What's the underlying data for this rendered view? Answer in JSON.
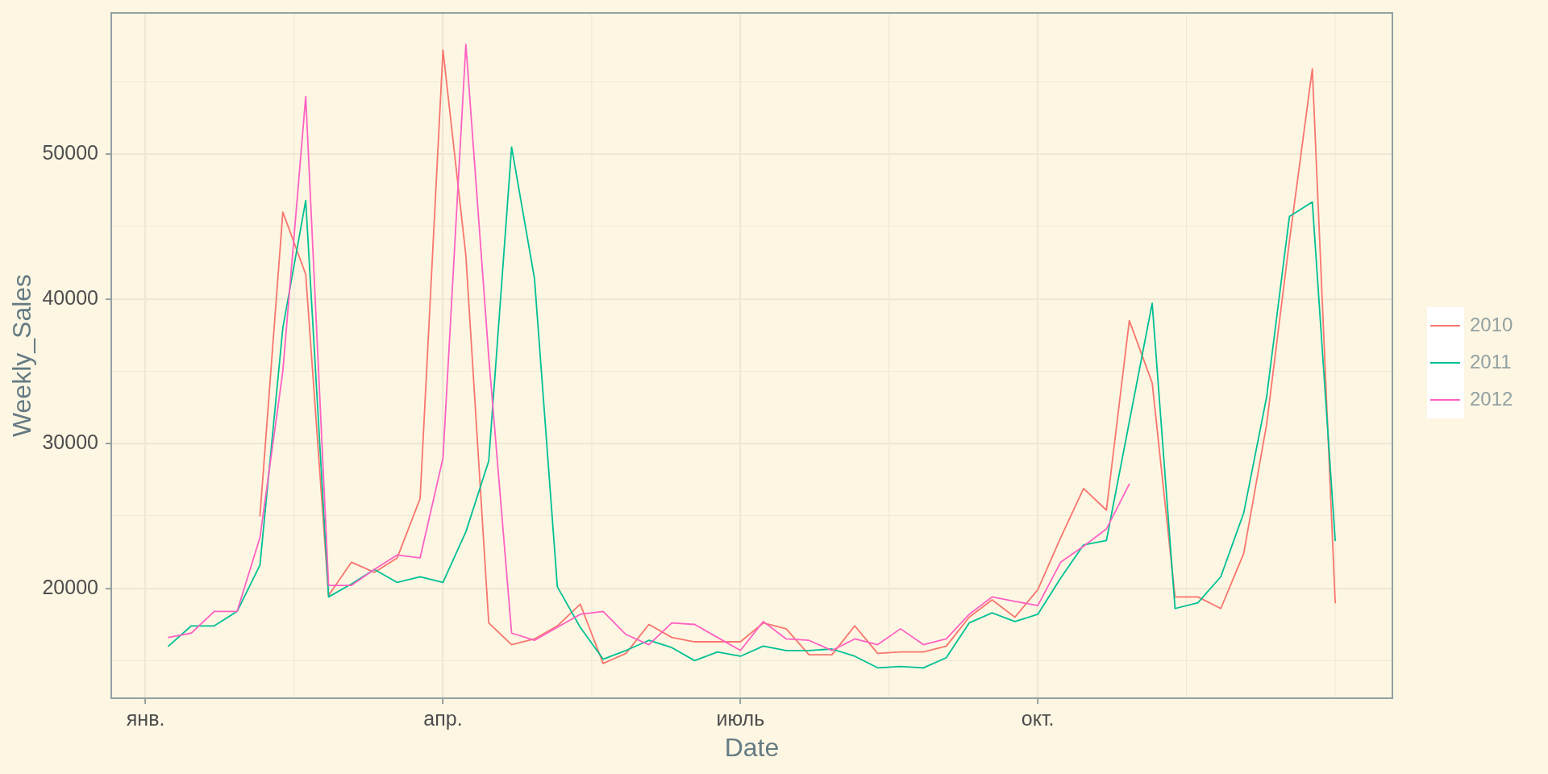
{
  "chart_data": {
    "type": "line",
    "xlabel": "Date",
    "ylabel": "Weekly_Sales",
    "legend": "right",
    "grid": true,
    "marker": "none",
    "categories": [
      null,
      "янв.",
      null,
      null,
      null,
      null,
      null,
      null,
      null,
      null,
      null,
      null,
      null,
      null,
      "апр.",
      null,
      null,
      null,
      null,
      null,
      null,
      null,
      null,
      null,
      null,
      null,
      null,
      "июль",
      null,
      null,
      null,
      null,
      null,
      null,
      null,
      null,
      null,
      null,
      null,
      null,
      "окт.",
      null,
      null,
      null,
      null,
      null,
      null,
      null,
      null,
      null,
      null,
      null,
      null,
      null,
      null,
      null
    ],
    "ylim": [
      12400,
      59770
    ],
    "yticks": [
      {
        "value": 15000,
        "label": null
      },
      20000,
      {
        "value": 25000,
        "label": null
      },
      30000,
      {
        "value": 35000,
        "label": null
      },
      40000,
      {
        "value": 45000,
        "label": null
      },
      50000,
      {
        "value": 55000,
        "label": null
      }
    ],
    "series": [
      {
        "name": "2010",
        "color": "#f8766d",
        "values": [
          null,
          null,
          null,
          null,
          null,
          null,
          25000,
          46000,
          41700,
          19500,
          21800,
          21100,
          22100,
          26200,
          57200,
          43000,
          17600,
          16100,
          16500,
          17400,
          18900,
          14800,
          15500,
          17500,
          16600,
          16300,
          16300,
          16300,
          17600,
          17200,
          15400,
          15400,
          17400,
          15500,
          15600,
          15600,
          16000,
          18000,
          19200,
          18000,
          19900,
          23500,
          26900,
          25400,
          38500,
          34200,
          19400,
          19400,
          18600,
          22400,
          31300,
          44000,
          55900,
          19000,
          null,
          null
        ]
      },
      {
        "name": "2011",
        "color": "#00c094",
        "values": [
          null,
          null,
          16000,
          17400,
          17400,
          18400,
          21600,
          38000,
          46800,
          19400,
          20300,
          21300,
          20400,
          20800,
          20400,
          23900,
          28800,
          50500,
          41400,
          20100,
          17300,
          15100,
          15700,
          16400,
          15900,
          15000,
          15600,
          15300,
          16000,
          15700,
          15700,
          15800,
          15300,
          14500,
          14600,
          14500,
          15200,
          17600,
          18300,
          17700,
          18200,
          20700,
          23000,
          23300,
          31500,
          39700,
          18600,
          19000,
          20800,
          25200,
          33200,
          45700,
          46700,
          23300,
          null,
          null
        ]
      },
      {
        "name": "2012",
        "color": "#ff61c3",
        "values": [
          null,
          null,
          16600,
          16900,
          18400,
          18400,
          23500,
          35000,
          54000,
          20200,
          20200,
          21300,
          22300,
          22100,
          29000,
          57600,
          36000,
          16900,
          16400,
          17300,
          18200,
          18400,
          16800,
          16100,
          17600,
          17500,
          16600,
          15700,
          17700,
          16500,
          16400,
          15700,
          16500,
          16100,
          17200,
          16100,
          16500,
          18200,
          19400,
          19100,
          18800,
          21800,
          22900,
          24100,
          27200,
          null,
          null,
          null,
          null,
          null,
          null,
          null,
          null,
          null,
          null,
          null
        ]
      }
    ]
  }
}
